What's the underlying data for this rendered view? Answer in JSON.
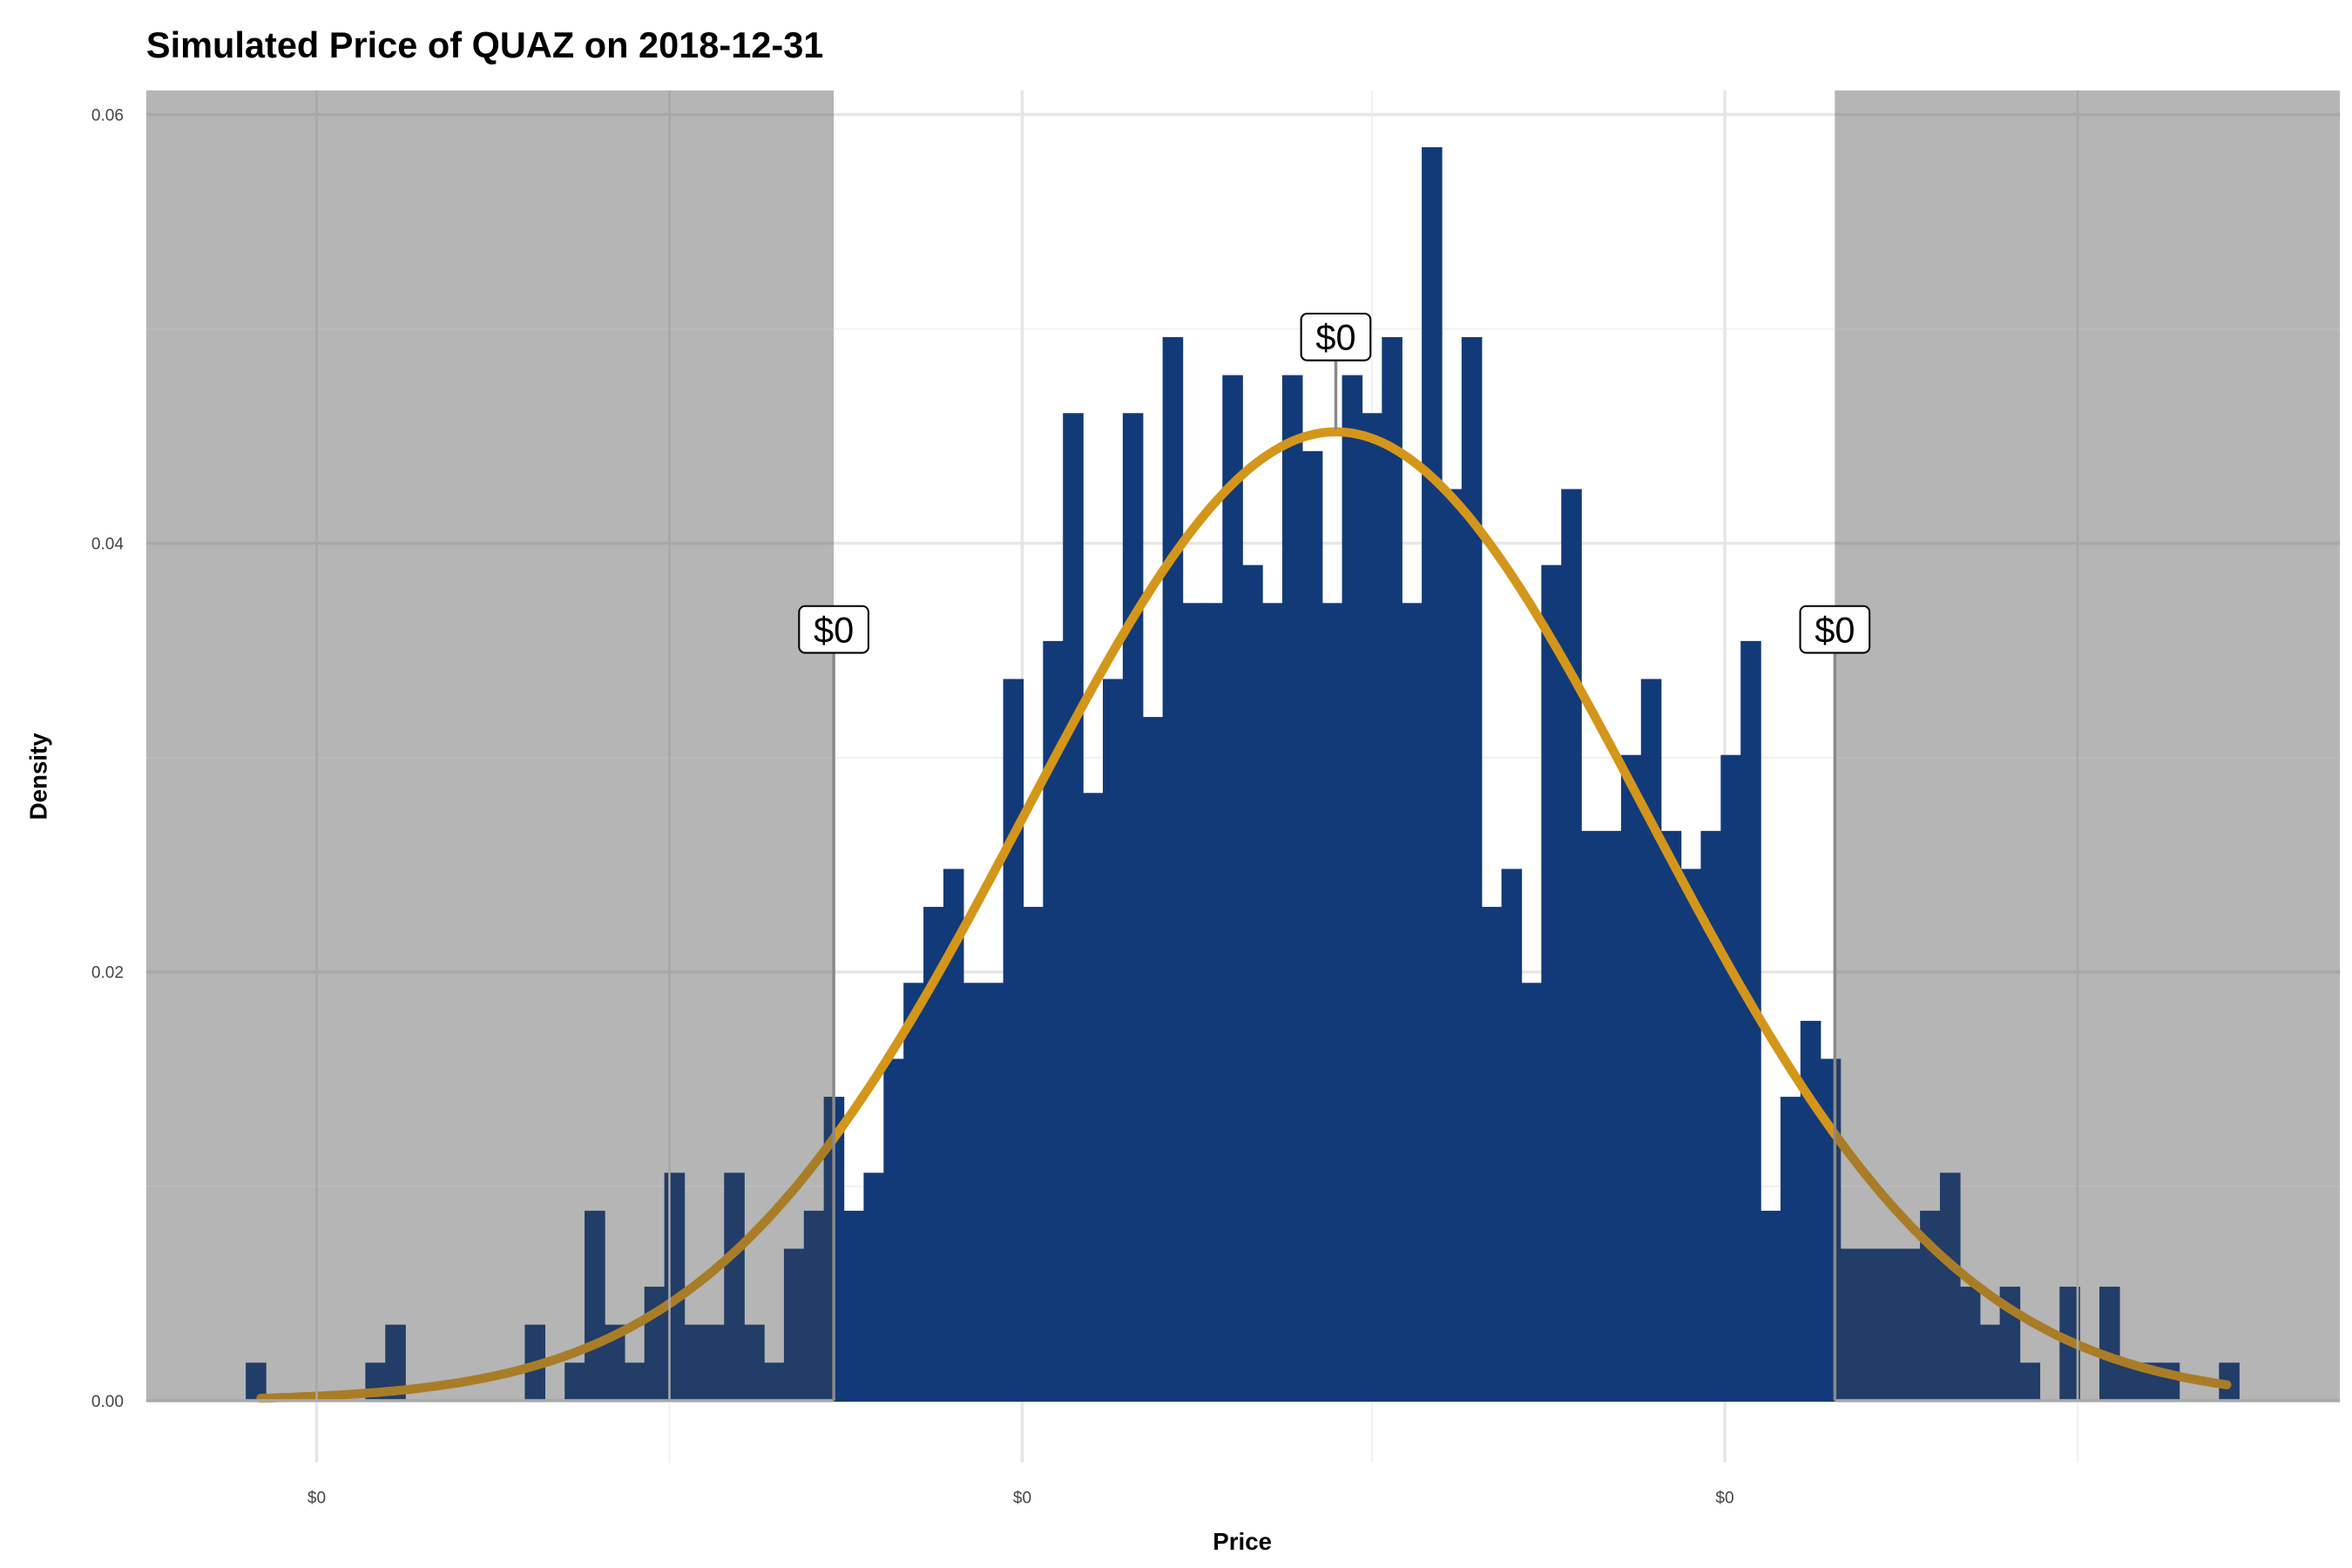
{
  "chart_data": {
    "type": "bar",
    "subtype": "histogram-with-normal-curve",
    "title": "Simulated Price of QUAZ on 2018-12-31",
    "xlabel": "Price",
    "ylabel": "Density",
    "ylim": [
      0,
      0.06
    ],
    "y_ticks": [
      "0.00",
      "0.02",
      "0.04",
      "0.06"
    ],
    "y_tick_values": [
      0,
      0.02,
      0.04,
      0.06
    ],
    "x_ticks": [
      "$0",
      "$0",
      "$0"
    ],
    "grid": true,
    "bin_density_unit": 0.001772,
    "bin_counts": [
      1,
      0,
      0,
      0,
      0,
      0,
      1,
      2,
      0,
      0,
      0,
      0,
      0,
      0,
      2,
      0,
      1,
      5,
      2,
      1,
      3,
      6,
      2,
      2,
      6,
      2,
      1,
      4,
      5,
      8,
      5,
      6,
      9,
      11,
      13,
      14,
      11,
      11,
      19,
      13,
      20,
      26,
      16,
      19,
      26,
      18,
      28,
      21,
      21,
      27,
      22,
      21,
      27,
      25,
      21,
      27,
      26,
      28,
      21,
      33,
      24,
      28,
      13,
      14,
      11,
      22,
      24,
      15,
      15,
      17,
      19,
      15,
      14,
      15,
      17,
      20,
      5,
      8,
      10,
      9,
      4,
      4,
      4,
      4,
      5,
      6,
      3,
      2,
      3,
      1,
      0,
      3,
      0,
      3,
      1,
      1,
      1,
      0,
      0,
      1
    ],
    "curve": {
      "type": "normal-fit",
      "peak_density": 0.0452
    },
    "annotations": [
      {
        "label": "$0",
        "role": "lower-bound"
      },
      {
        "label": "$0",
        "role": "mean"
      },
      {
        "label": "$0",
        "role": "upper-bound"
      }
    ],
    "colors": {
      "bars": "#123a78",
      "curve": "#d4961a",
      "shaded_region": "#b5b5b5"
    }
  }
}
